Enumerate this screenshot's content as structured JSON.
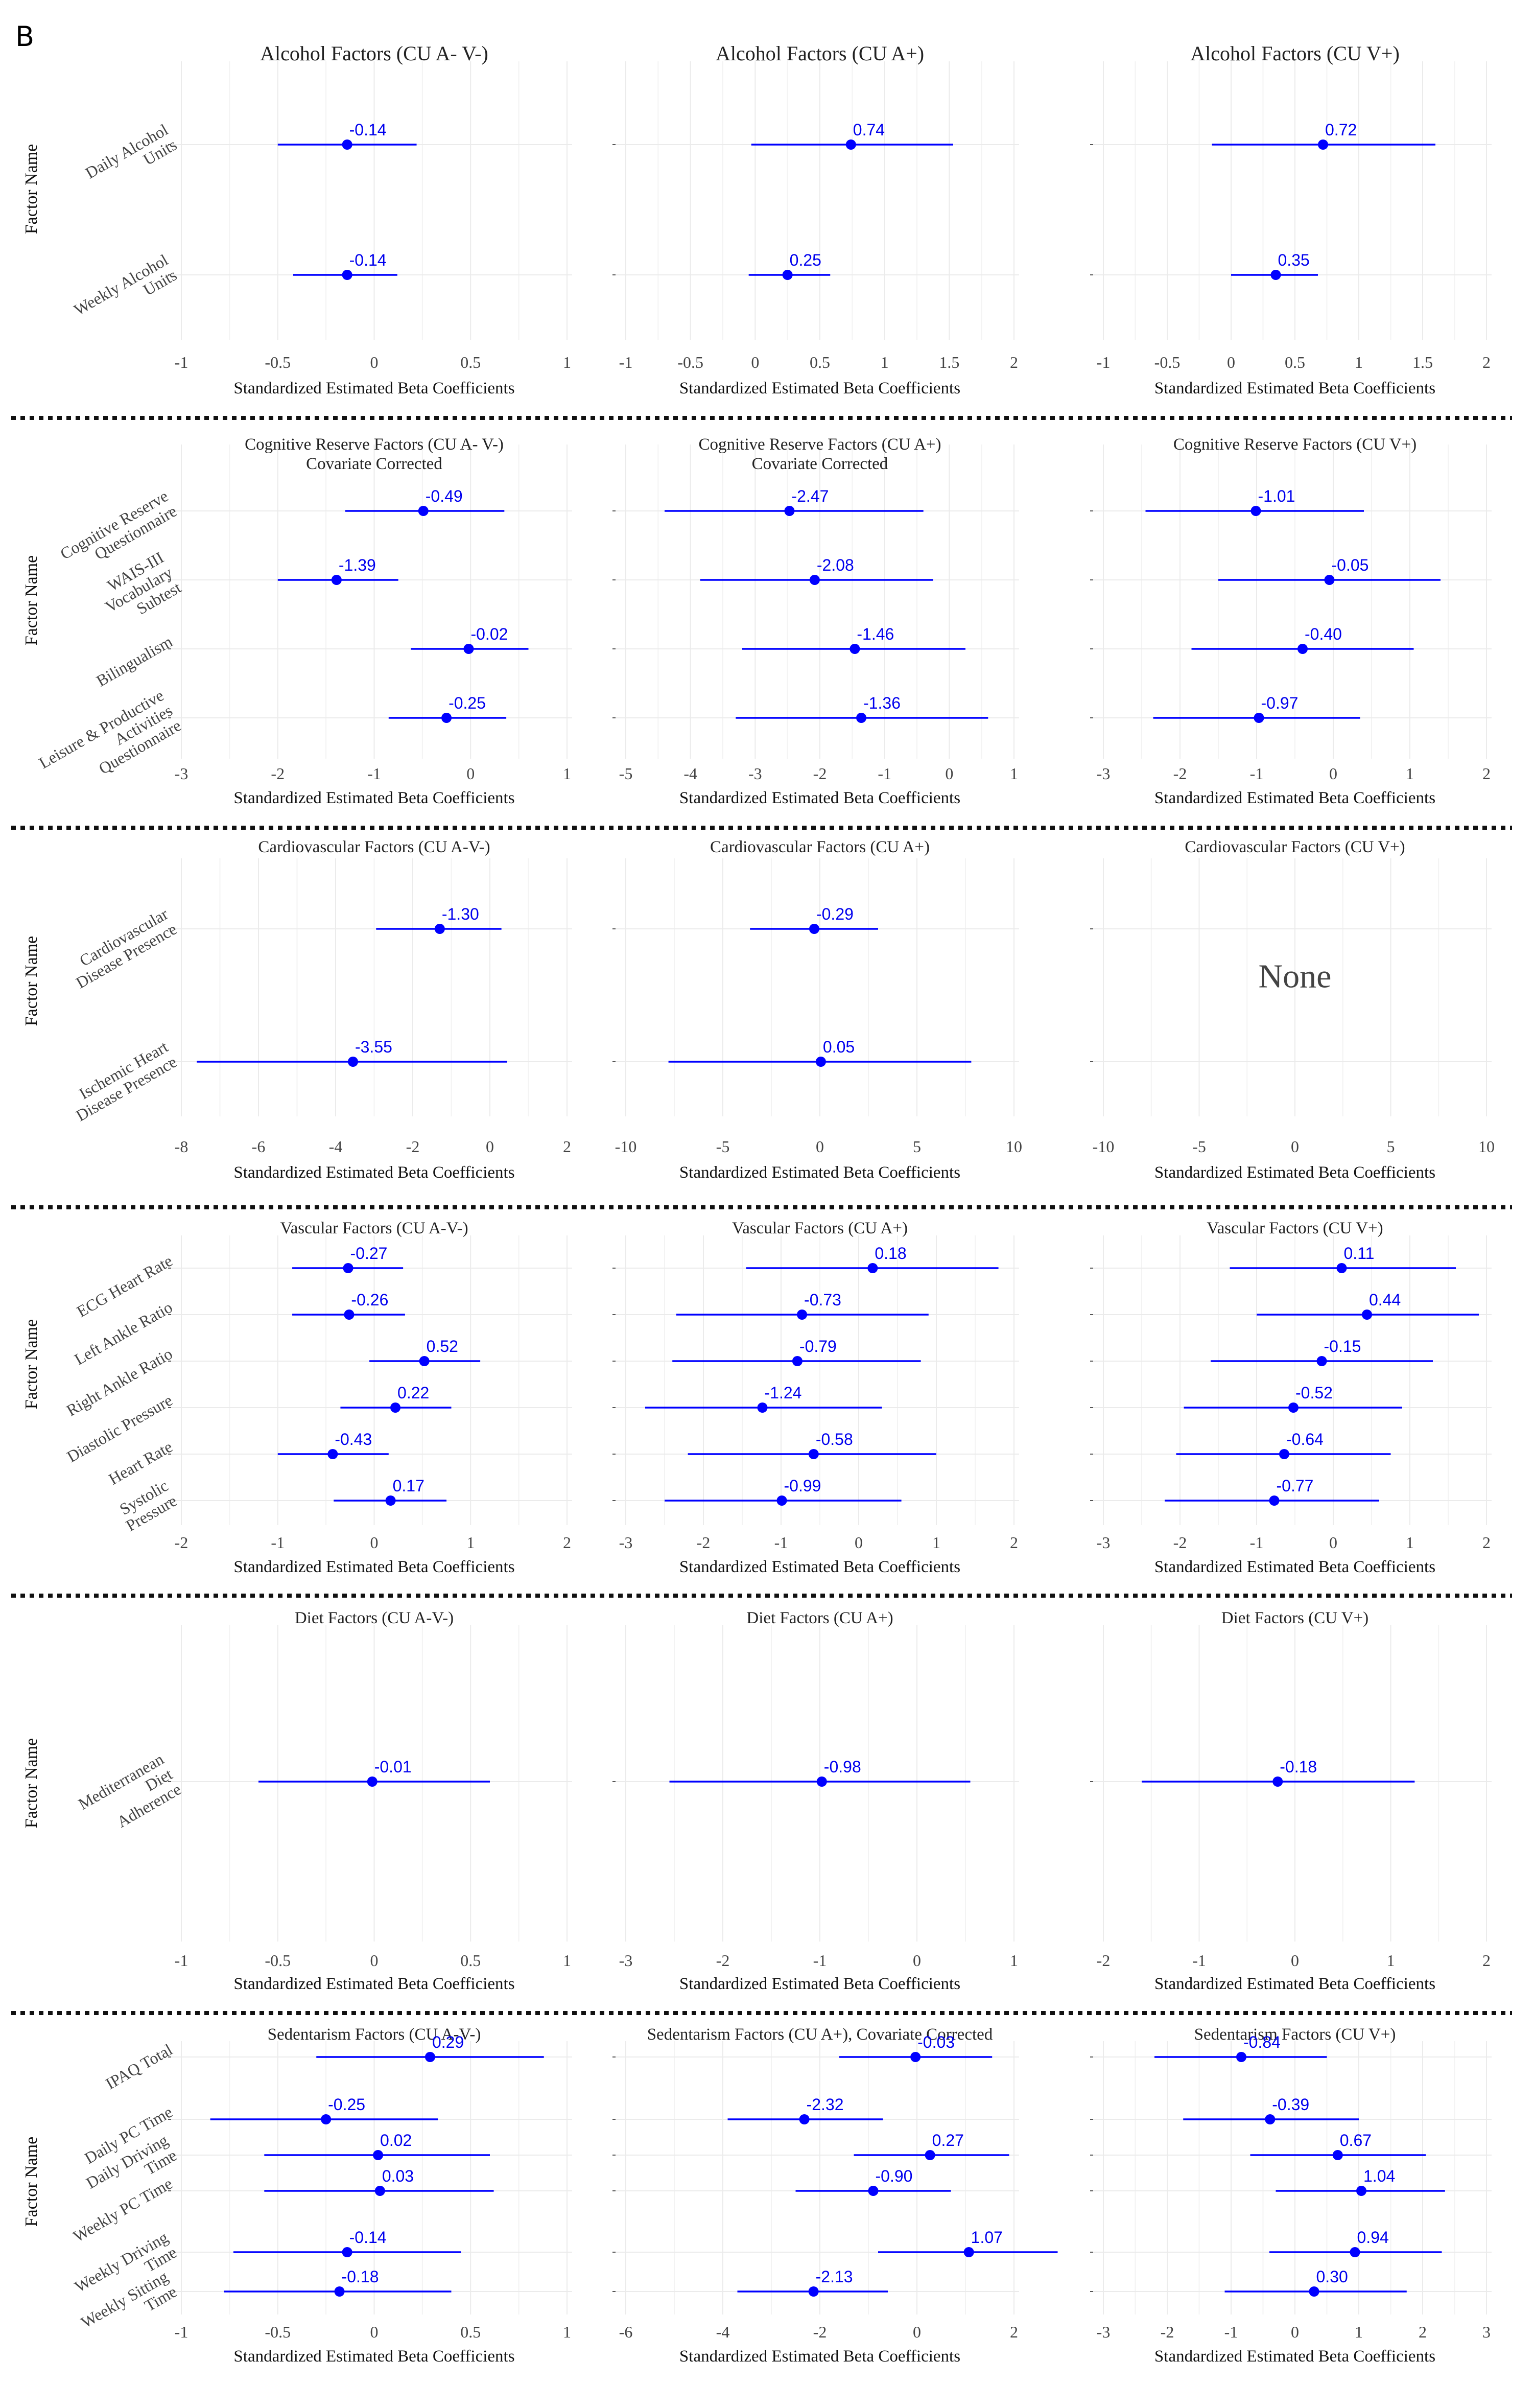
{
  "panel_label": "B",
  "ylabel": "Factor Name",
  "none_label": "None",
  "chart_data": [
    {
      "type": "forest",
      "title": "Alcohol Factors (CU A- V-)",
      "xlabel": "Standardized Estimated Beta Coefficients",
      "xlim": [
        -1,
        1
      ],
      "ticks": [
        -1,
        -0.5,
        0,
        0.5,
        1
      ],
      "tick_labels": [
        "-1",
        "-0.5",
        "0",
        "0.5",
        "1"
      ],
      "categories": [
        [
          "Daily Alcohol",
          "Units"
        ],
        [
          "Weekly Alcohol",
          "Units"
        ]
      ],
      "points": [
        {
          "est": -0.14,
          "lo": -0.5,
          "hi": 0.22,
          "label": "-0.14"
        },
        {
          "est": -0.14,
          "lo": -0.42,
          "hi": 0.12,
          "label": "-0.14"
        }
      ]
    },
    {
      "type": "forest",
      "title": "Alcohol Factors (CU A+)",
      "xlabel": "Standardized Estimated Beta Coefficients",
      "xlim": [
        -1,
        2
      ],
      "ticks": [
        -1,
        -0.5,
        0,
        0.5,
        1,
        1.5,
        2
      ],
      "tick_labels": [
        "-1",
        "-0.5",
        "0",
        "0.5",
        "1",
        "1.5",
        "2"
      ],
      "categories": [
        [
          "Daily Alcohol",
          "Units"
        ],
        [
          "Weekly Alcohol",
          "Units"
        ]
      ],
      "points": [
        {
          "est": 0.74,
          "lo": -0.03,
          "hi": 1.53,
          "label": "0.74"
        },
        {
          "est": 0.25,
          "lo": -0.05,
          "hi": 0.58,
          "label": "0.25"
        }
      ]
    },
    {
      "type": "forest",
      "title": "Alcohol Factors (CU V+)",
      "xlabel": "Standardized Estimated Beta Coefficients",
      "xlim": [
        -1,
        2
      ],
      "ticks": [
        -1,
        -0.5,
        0,
        0.5,
        1,
        1.5,
        2
      ],
      "tick_labels": [
        "-1",
        "-0.5",
        "0",
        "0.5",
        "1",
        "1.5",
        "2"
      ],
      "categories": [
        [
          "Daily Alcohol",
          "Units"
        ],
        [
          "Weekly Alcohol",
          "Units"
        ]
      ],
      "points": [
        {
          "est": 0.72,
          "lo": -0.15,
          "hi": 1.6,
          "label": "0.72"
        },
        {
          "est": 0.35,
          "lo": 0.0,
          "hi": 0.68,
          "label": "0.35"
        }
      ]
    },
    {
      "type": "forest",
      "title": "Cognitive Reserve Factors (CU A- V-)",
      "subtitle": "Covariate Corrected",
      "xlabel": "Standardized Estimated Beta Coefficients",
      "xlim": [
        -3,
        1
      ],
      "ticks": [
        -3,
        -2,
        -1,
        0,
        1
      ],
      "tick_labels": [
        "-3",
        "-2",
        "-1",
        "0",
        "1"
      ],
      "categories": [
        [
          "Cognitive Reserve",
          "Questionnaire"
        ],
        [
          "WAIS-III",
          "Vocabulary",
          "Subtest"
        ],
        [
          "Bilingualism"
        ],
        [
          "Leisure & Productive",
          "Activities",
          "Questionnaire"
        ]
      ],
      "points": [
        {
          "est": -0.49,
          "lo": -1.3,
          "hi": 0.35,
          "label": "-0.49"
        },
        {
          "est": -1.39,
          "lo": -2.0,
          "hi": -0.75,
          "label": "-1.39"
        },
        {
          "est": -0.02,
          "lo": -0.62,
          "hi": 0.6,
          "label": "-0.02"
        },
        {
          "est": -0.25,
          "lo": -0.85,
          "hi": 0.37,
          "label": "-0.25"
        }
      ]
    },
    {
      "type": "forest",
      "title": "Cognitive Reserve Factors (CU A+)",
      "subtitle": "Covariate Corrected",
      "xlabel": "Standardized Estimated Beta Coefficients",
      "xlim": [
        -5,
        1
      ],
      "ticks": [
        -5,
        -4,
        -3,
        -2,
        -1,
        0,
        1
      ],
      "tick_labels": [
        "-5",
        "-4",
        "-3",
        "-2",
        "-1",
        "0",
        "1"
      ],
      "categories": [
        [
          "Cognitive Reserve",
          "Questionnaire"
        ],
        [
          "WAIS-III",
          "Vocabulary",
          "Subtest"
        ],
        [
          "Bilingualism"
        ],
        [
          "Leisure & Productive",
          "Activities",
          "Questionnaire"
        ]
      ],
      "points": [
        {
          "est": -2.47,
          "lo": -4.4,
          "hi": -0.4,
          "label": "-2.47"
        },
        {
          "est": -2.08,
          "lo": -3.85,
          "hi": -0.25,
          "label": "-2.08"
        },
        {
          "est": -1.46,
          "lo": -3.2,
          "hi": 0.25,
          "label": "-1.46"
        },
        {
          "est": -1.36,
          "lo": -3.3,
          "hi": 0.6,
          "label": "-1.36"
        }
      ]
    },
    {
      "type": "forest",
      "title": "Cognitive Reserve Factors (CU V+)",
      "xlabel": "Standardized Estimated Beta Coefficients",
      "xlim": [
        -3,
        2
      ],
      "ticks": [
        -3,
        -2,
        -1,
        0,
        1,
        2
      ],
      "tick_labels": [
        "-3",
        "-2",
        "-1",
        "0",
        "1",
        "2"
      ],
      "categories": [
        [
          "Cognitive Reserve",
          "Questionnaire"
        ],
        [
          "WAIS-III",
          "Vocabulary",
          "Subtest"
        ],
        [
          "Bilingualism"
        ],
        [
          "Leisure & Productive",
          "Activities",
          "Questionnaire"
        ]
      ],
      "points": [
        {
          "est": -1.01,
          "lo": -2.45,
          "hi": 0.4,
          "label": "-1.01"
        },
        {
          "est": -0.05,
          "lo": -1.5,
          "hi": 1.4,
          "label": "-0.05"
        },
        {
          "est": -0.4,
          "lo": -1.85,
          "hi": 1.05,
          "label": "-0.40"
        },
        {
          "est": -0.97,
          "lo": -2.35,
          "hi": 0.35,
          "label": "-0.97"
        }
      ]
    },
    {
      "type": "forest",
      "title": "Cardiovascular Factors (CU A-V-)",
      "xlabel": "Standardized Estimated Beta Coefficients",
      "xlim": [
        -8,
        2
      ],
      "ticks": [
        -8,
        -6,
        -4,
        -2,
        0,
        2
      ],
      "tick_labels": [
        "-8",
        "-6",
        "-4",
        "-2",
        "0",
        "2"
      ],
      "categories": [
        [
          "Cardiovascular",
          "Disease Presence"
        ],
        [
          "Ischemic Heart",
          "Disease Presence"
        ]
      ],
      "points": [
        {
          "est": -1.3,
          "lo": -2.95,
          "hi": 0.3,
          "label": "-1.30"
        },
        {
          "est": -3.55,
          "lo": -7.6,
          "hi": 0.45,
          "label": "-3.55"
        }
      ]
    },
    {
      "type": "forest",
      "title": "Cardiovascular Factors (CU A+)",
      "xlabel": "Standardized Estimated Beta Coefficients",
      "xlim": [
        -10,
        10
      ],
      "ticks": [
        -10,
        -5,
        0,
        5,
        10
      ],
      "tick_labels": [
        "-10",
        "-5",
        "0",
        "5",
        "10"
      ],
      "categories": [
        [
          "Cardiovascular",
          "Disease Presence"
        ],
        [
          "Ischemic Heart",
          "Disease Presence"
        ]
      ],
      "points": [
        {
          "est": -0.29,
          "lo": -3.6,
          "hi": 3.0,
          "label": "-0.29"
        },
        {
          "est": 0.05,
          "lo": -7.8,
          "hi": 7.8,
          "label": "0.05"
        }
      ]
    },
    {
      "type": "forest",
      "title": "Cardiovascular Factors (CU V+)",
      "xlabel": "Standardized Estimated Beta Coefficients",
      "xlim": [
        -10,
        10
      ],
      "ticks": [
        -10,
        -5,
        0,
        5,
        10
      ],
      "tick_labels": [
        "-10",
        "-5",
        "0",
        "5",
        "10"
      ],
      "categories": [
        [
          "Cardiovascular",
          "Disease Presence"
        ],
        [
          "Ischemic Heart",
          "Disease Presence"
        ]
      ],
      "points": [],
      "empty": true
    },
    {
      "type": "forest",
      "title": "Vascular Factors (CU A-V-)",
      "xlabel": "Standardized Estimated Beta Coefficients",
      "xlim": [
        -2,
        2
      ],
      "ticks": [
        -2,
        -1,
        0,
        1,
        2
      ],
      "tick_labels": [
        "-2",
        "-1",
        "0",
        "1",
        "2"
      ],
      "categories": [
        [
          "ECG Heart Rate"
        ],
        [
          "Left Ankle Ratio"
        ],
        [
          "Right Ankle Ratio"
        ],
        [
          "Diastolic Pressure"
        ],
        [
          "Heart Rate"
        ],
        [
          "Systolic",
          "Pressure"
        ]
      ],
      "points": [
        {
          "est": -0.27,
          "lo": -0.85,
          "hi": 0.3,
          "label": "-0.27"
        },
        {
          "est": -0.26,
          "lo": -0.85,
          "hi": 0.32,
          "label": "-0.26"
        },
        {
          "est": 0.52,
          "lo": -0.05,
          "hi": 1.1,
          "label": "0.52"
        },
        {
          "est": 0.22,
          "lo": -0.35,
          "hi": 0.8,
          "label": "0.22"
        },
        {
          "est": -0.43,
          "lo": -1.0,
          "hi": 0.15,
          "label": "-0.43"
        },
        {
          "est": 0.17,
          "lo": -0.42,
          "hi": 0.75,
          "label": "0.17"
        }
      ]
    },
    {
      "type": "forest",
      "title": "Vascular Factors (CU A+)",
      "xlabel": "Standardized Estimated Beta Coefficients",
      "xlim": [
        -3,
        2
      ],
      "ticks": [
        -3,
        -2,
        -1,
        0,
        1,
        2
      ],
      "tick_labels": [
        "-3",
        "-2",
        "-1",
        "0",
        "1",
        "2"
      ],
      "categories": [
        [
          "ECG Heart Rate"
        ],
        [
          "Left Ankle Ratio"
        ],
        [
          "Right Ankle Ratio"
        ],
        [
          "Diastolic Pressure"
        ],
        [
          "Heart Rate"
        ],
        [
          "Systolic",
          "Pressure"
        ]
      ],
      "points": [
        {
          "est": 0.18,
          "lo": -1.45,
          "hi": 1.8,
          "label": "0.18"
        },
        {
          "est": -0.73,
          "lo": -2.35,
          "hi": 0.9,
          "label": "-0.73"
        },
        {
          "est": -0.79,
          "lo": -2.4,
          "hi": 0.8,
          "label": "-0.79"
        },
        {
          "est": -1.24,
          "lo": -2.75,
          "hi": 0.3,
          "label": "-1.24"
        },
        {
          "est": -0.58,
          "lo": -2.2,
          "hi": 1.0,
          "label": "-0.58"
        },
        {
          "est": -0.99,
          "lo": -2.5,
          "hi": 0.55,
          "label": "-0.99"
        }
      ]
    },
    {
      "type": "forest",
      "title": "Vascular Factors (CU V+)",
      "xlabel": "Standardized Estimated Beta Coefficients",
      "xlim": [
        -3,
        2
      ],
      "ticks": [
        -3,
        -2,
        -1,
        0,
        1,
        2
      ],
      "tick_labels": [
        "-3",
        "-2",
        "-1",
        "0",
        "1",
        "2"
      ],
      "categories": [
        [
          "ECG Heart Rate"
        ],
        [
          "Left Ankle Ratio"
        ],
        [
          "Right Ankle Ratio"
        ],
        [
          "Diastolic Pressure"
        ],
        [
          "Heart Rate"
        ],
        [
          "Systolic",
          "Pressure"
        ]
      ],
      "points": [
        {
          "est": 0.11,
          "lo": -1.35,
          "hi": 1.6,
          "label": "0.11"
        },
        {
          "est": 0.44,
          "lo": -1.0,
          "hi": 1.9,
          "label": "0.44"
        },
        {
          "est": -0.15,
          "lo": -1.6,
          "hi": 1.3,
          "label": "-0.15"
        },
        {
          "est": -0.52,
          "lo": -1.95,
          "hi": 0.9,
          "label": "-0.52"
        },
        {
          "est": -0.64,
          "lo": -2.05,
          "hi": 0.75,
          "label": "-0.64"
        },
        {
          "est": -0.77,
          "lo": -2.2,
          "hi": 0.6,
          "label": "-0.77"
        }
      ]
    },
    {
      "type": "forest",
      "title": "Diet Factors (CU A-V-)",
      "xlabel": "Standardized Estimated Beta Coefficients",
      "xlim": [
        -1,
        1
      ],
      "ticks": [
        -1,
        -0.5,
        0,
        0.5,
        1
      ],
      "tick_labels": [
        "-1",
        "-0.5",
        "0",
        "0.5",
        "1"
      ],
      "categories": [
        [
          "Mediterranean",
          "Diet",
          "Adherence"
        ]
      ],
      "points": [
        {
          "est": -0.01,
          "lo": -0.6,
          "hi": 0.6,
          "label": "-0.01"
        }
      ]
    },
    {
      "type": "forest",
      "title": "Diet Factors (CU A+)",
      "xlabel": "Standardized Estimated Beta Coefficients",
      "xlim": [
        -3,
        1
      ],
      "ticks": [
        -3,
        -2,
        -1,
        0,
        1
      ],
      "tick_labels": [
        "-3",
        "-2",
        "-1",
        "0",
        "1"
      ],
      "categories": [
        [
          "Mediterranean",
          "Diet",
          "Adherence"
        ]
      ],
      "points": [
        {
          "est": -0.98,
          "lo": -2.55,
          "hi": 0.55,
          "label": "-0.98"
        }
      ]
    },
    {
      "type": "forest",
      "title": "Diet Factors (CU V+)",
      "xlabel": "Standardized Estimated Beta Coefficients",
      "xlim": [
        -2,
        2
      ],
      "ticks": [
        -2,
        -1,
        0,
        1,
        2
      ],
      "tick_labels": [
        "-2",
        "-1",
        "0",
        "1",
        "2"
      ],
      "categories": [
        [
          "Mediterranean",
          "Diet",
          "Adherence"
        ]
      ],
      "points": [
        {
          "est": -0.18,
          "lo": -1.6,
          "hi": 1.25,
          "label": "-0.18"
        }
      ]
    },
    {
      "type": "forest",
      "title": "Sedentarism Factors (CU A-V-)",
      "xlabel": "Standardized Estimated Beta Coefficients",
      "xlim": [
        -1,
        1
      ],
      "ticks": [
        -1,
        -0.5,
        0,
        0.5,
        1
      ],
      "tick_labels": [
        "-1",
        "-0.5",
        "0",
        "0.5",
        "1"
      ],
      "categories": [
        [
          "IPAQ Total"
        ],
        [
          "Daily PC Time"
        ],
        [
          "Daily Driving",
          "Time"
        ],
        [
          "Weekly PC Time"
        ],
        [
          "Weekly Driving",
          "Time"
        ],
        [
          "Weekly Sitting",
          "Time"
        ]
      ],
      "points": [
        {
          "est": 0.29,
          "lo": -0.3,
          "hi": 0.88,
          "label": "0.29"
        },
        {
          "est": -0.25,
          "lo": -0.85,
          "hi": 0.33,
          "label": "-0.25"
        },
        {
          "est": 0.02,
          "lo": -0.57,
          "hi": 0.6,
          "label": "0.02"
        },
        {
          "est": 0.03,
          "lo": -0.57,
          "hi": 0.62,
          "label": "0.03"
        },
        {
          "est": -0.14,
          "lo": -0.73,
          "hi": 0.45,
          "label": "-0.14"
        },
        {
          "est": -0.18,
          "lo": -0.78,
          "hi": 0.4,
          "label": "-0.18"
        }
      ]
    },
    {
      "type": "forest",
      "title": "Sedentarism Factors (CU A+), Covariate Corrected",
      "xlabel": "Standardized Estimated Beta Coefficients",
      "xlim": [
        -6,
        2
      ],
      "ticks": [
        -6,
        -4,
        -2,
        0,
        2
      ],
      "tick_labels": [
        "-6",
        "-4",
        "-2",
        "0",
        "2"
      ],
      "categories": [
        [
          "IPAQ Total"
        ],
        [
          "Daily PC Time"
        ],
        [
          "Daily Driving",
          "Time"
        ],
        [
          "Weekly PC Time"
        ],
        [
          "Weekly Driving",
          "Time"
        ],
        [
          "Weekly Sitting",
          "Time"
        ]
      ],
      "points": [
        {
          "est": -0.03,
          "lo": -1.6,
          "hi": 1.55,
          "label": "-0.03"
        },
        {
          "est": -2.32,
          "lo": -3.9,
          "hi": -0.7,
          "label": "-2.32"
        },
        {
          "est": 0.27,
          "lo": -1.3,
          "hi": 1.9,
          "label": "0.27"
        },
        {
          "est": -0.9,
          "lo": -2.5,
          "hi": 0.7,
          "label": "-0.90"
        },
        {
          "est": 1.07,
          "lo": -0.8,
          "hi": 2.9,
          "label": "1.07"
        },
        {
          "est": -2.13,
          "lo": -3.7,
          "hi": -0.6,
          "label": "-2.13"
        }
      ]
    },
    {
      "type": "forest",
      "title": "Sedentarism Factors (CU V+)",
      "xlabel": "Standardized Estimated Beta Coefficients",
      "xlim": [
        -3,
        3
      ],
      "ticks": [
        -3,
        -2,
        -1,
        0,
        1,
        2,
        3
      ],
      "tick_labels": [
        "-3",
        "-2",
        "-1",
        "0",
        "1",
        "2",
        "3"
      ],
      "categories": [
        [
          "IPAQ Total"
        ],
        [
          "Daily PC Time"
        ],
        [
          "Daily Driving",
          "Time"
        ],
        [
          "Weekly PC Time"
        ],
        [
          "Weekly Driving",
          "Time"
        ],
        [
          "Weekly Sitting",
          "Time"
        ]
      ],
      "points": [
        {
          "est": -0.84,
          "lo": -2.2,
          "hi": 0.5,
          "label": "-0.84"
        },
        {
          "est": -0.39,
          "lo": -1.75,
          "hi": 1.0,
          "label": "-0.39"
        },
        {
          "est": 0.67,
          "lo": -0.7,
          "hi": 2.05,
          "label": "0.67"
        },
        {
          "est": 1.04,
          "lo": -0.3,
          "hi": 2.35,
          "label": "1.04"
        },
        {
          "est": 0.94,
          "lo": -0.4,
          "hi": 2.3,
          "label": "0.94"
        },
        {
          "est": 0.3,
          "lo": -1.1,
          "hi": 1.75,
          "label": "0.30"
        }
      ]
    }
  ]
}
